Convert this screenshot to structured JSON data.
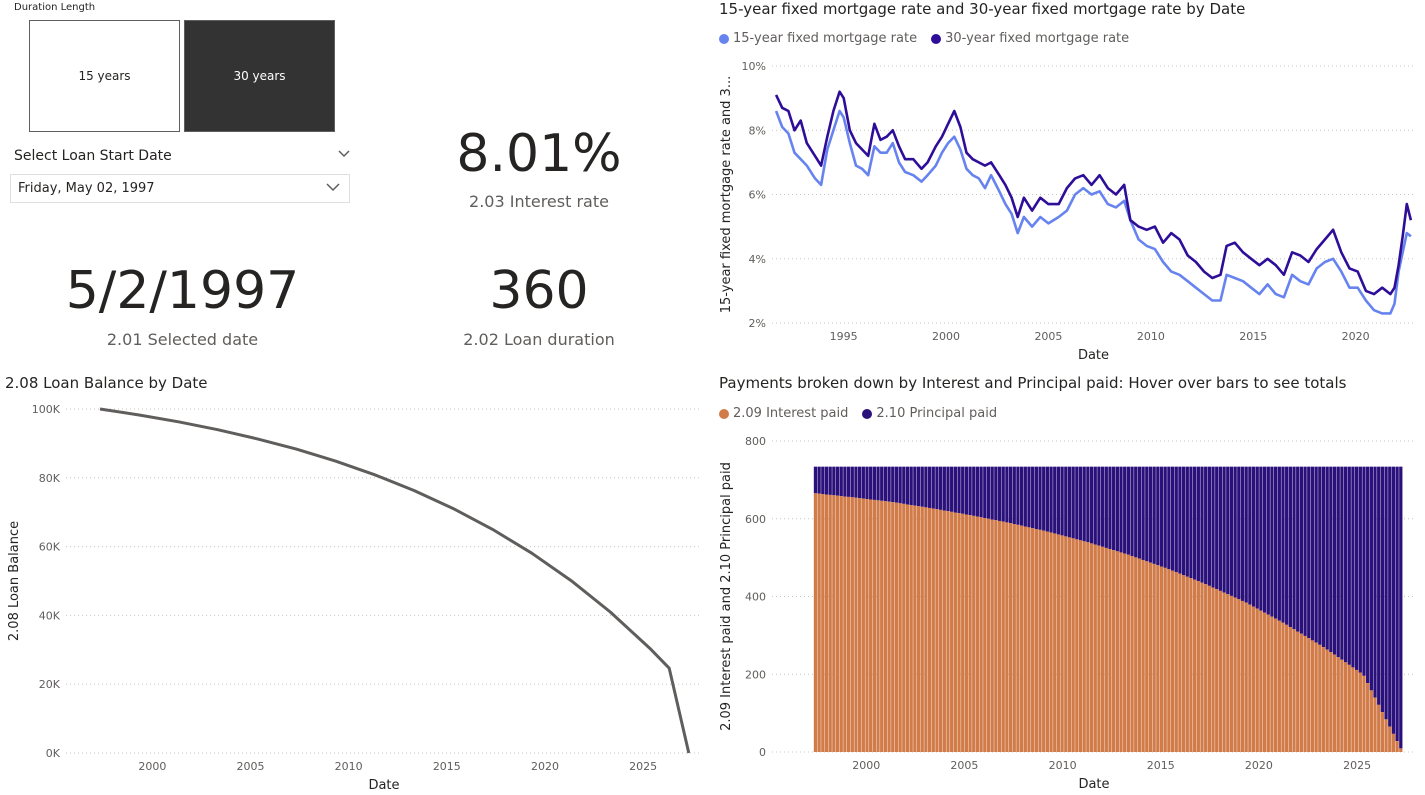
{
  "slicer": {
    "title": "Duration Length",
    "options": [
      "15 years",
      "30 years"
    ],
    "selected": "30 years"
  },
  "date_slicer": {
    "title": "Select Loan Start Date",
    "value": "Friday, May 02, 1997",
    "icon": "chevron-down-icon"
  },
  "kpis": {
    "interest_rate": {
      "value": "8.01%",
      "label": "2.03 Interest rate"
    },
    "selected_date": {
      "value": "5/2/1997",
      "label": "2.01 Selected date"
    },
    "loan_duration": {
      "value": "360",
      "label": "2.02 Loan duration"
    }
  },
  "colors": {
    "rate15": "#6783ef",
    "rate30": "#2e0e99",
    "balance": "#605e5c",
    "interest": "#d17b49",
    "principal": "#2a107a",
    "grid": "#c8c6c4"
  },
  "chart_data": [
    {
      "type": "line",
      "title": "15-year fixed mortgage rate and 30-year fixed mortgage rate by Date",
      "xlabel": "Date",
      "ylabel": "15-year fixed mortgage rate and 3...",
      "xlim": [
        1991.5,
        2022.9
      ],
      "ylim": [
        2,
        10
      ],
      "yticks": [
        "2%",
        "4%",
        "6%",
        "8%",
        "10%"
      ],
      "ytick_values": [
        2,
        4,
        6,
        8,
        10
      ],
      "xticks": [
        "1995",
        "2000",
        "2005",
        "2010",
        "2015",
        "2020"
      ],
      "xtick_values": [
        1995,
        2000,
        2005,
        2010,
        2015,
        2020
      ],
      "legend_position": "top-left",
      "series": [
        {
          "name": "15-year fixed mortgage rate",
          "x": [
            1991.7,
            1992.0,
            1992.3,
            1992.6,
            1992.9,
            1993.2,
            1993.6,
            1993.9,
            1994.2,
            1994.5,
            1994.8,
            1995.0,
            1995.3,
            1995.6,
            1995.9,
            1996.2,
            1996.5,
            1996.8,
            1997.1,
            1997.4,
            1997.7,
            1998.0,
            1998.4,
            1998.8,
            1999.1,
            1999.5,
            1999.8,
            2000.1,
            2000.4,
            2000.7,
            2001.0,
            2001.3,
            2001.6,
            2001.9,
            2002.2,
            2002.6,
            2002.9,
            2003.2,
            2003.5,
            2003.8,
            2004.2,
            2004.6,
            2005.0,
            2005.5,
            2005.9,
            2006.3,
            2006.7,
            2007.1,
            2007.5,
            2007.9,
            2008.3,
            2008.7,
            2009.0,
            2009.4,
            2009.8,
            2010.2,
            2010.6,
            2011.0,
            2011.4,
            2011.8,
            2012.2,
            2012.6,
            2013.0,
            2013.4,
            2013.7,
            2014.1,
            2014.5,
            2014.9,
            2015.3,
            2015.7,
            2016.1,
            2016.5,
            2016.9,
            2017.3,
            2017.7,
            2018.1,
            2018.5,
            2018.9,
            2019.3,
            2019.7,
            2020.1,
            2020.5,
            2020.9,
            2021.3,
            2021.7,
            2021.9,
            2022.1,
            2022.3,
            2022.5,
            2022.7
          ],
          "y": [
            8.6,
            8.1,
            7.9,
            7.3,
            7.1,
            6.9,
            6.5,
            6.3,
            7.4,
            8.0,
            8.6,
            8.4,
            7.6,
            6.9,
            6.8,
            6.6,
            7.5,
            7.3,
            7.3,
            7.6,
            7.0,
            6.7,
            6.6,
            6.4,
            6.6,
            6.9,
            7.3,
            7.6,
            7.8,
            7.4,
            6.8,
            6.6,
            6.5,
            6.2,
            6.6,
            6.1,
            5.7,
            5.4,
            4.8,
            5.3,
            5.0,
            5.3,
            5.1,
            5.3,
            5.5,
            6.0,
            6.2,
            6.0,
            6.1,
            5.7,
            5.6,
            5.8,
            5.2,
            4.6,
            4.4,
            4.3,
            3.9,
            3.6,
            3.5,
            3.3,
            3.1,
            2.9,
            2.7,
            2.7,
            3.5,
            3.4,
            3.3,
            3.1,
            2.9,
            3.2,
            2.9,
            2.8,
            3.5,
            3.3,
            3.2,
            3.7,
            3.9,
            4.0,
            3.6,
            3.1,
            3.1,
            2.7,
            2.4,
            2.3,
            2.3,
            2.6,
            3.6,
            4.2,
            4.8,
            4.7
          ]
        },
        {
          "name": "30-year fixed mortgage rate",
          "x": [
            1991.7,
            1992.0,
            1992.3,
            1992.6,
            1992.9,
            1993.2,
            1993.6,
            1993.9,
            1994.2,
            1994.5,
            1994.8,
            1995.0,
            1995.3,
            1995.6,
            1995.9,
            1996.2,
            1996.5,
            1996.8,
            1997.1,
            1997.4,
            1997.7,
            1998.0,
            1998.4,
            1998.8,
            1999.1,
            1999.5,
            1999.8,
            2000.1,
            2000.4,
            2000.7,
            2001.0,
            2001.3,
            2001.6,
            2001.9,
            2002.2,
            2002.6,
            2002.9,
            2003.2,
            2003.5,
            2003.8,
            2004.2,
            2004.6,
            2005.0,
            2005.5,
            2005.9,
            2006.3,
            2006.7,
            2007.1,
            2007.5,
            2007.9,
            2008.3,
            2008.7,
            2009.0,
            2009.4,
            2009.8,
            2010.2,
            2010.6,
            2011.0,
            2011.4,
            2011.8,
            2012.2,
            2012.6,
            2013.0,
            2013.4,
            2013.7,
            2014.1,
            2014.5,
            2014.9,
            2015.3,
            2015.7,
            2016.1,
            2016.5,
            2016.9,
            2017.3,
            2017.7,
            2018.1,
            2018.5,
            2018.9,
            2019.3,
            2019.7,
            2020.1,
            2020.5,
            2020.9,
            2021.3,
            2021.7,
            2021.9,
            2022.1,
            2022.3,
            2022.5,
            2022.7
          ],
          "y": [
            9.1,
            8.7,
            8.6,
            8.0,
            8.3,
            7.6,
            7.2,
            6.9,
            7.8,
            8.6,
            9.2,
            9.0,
            8.0,
            7.6,
            7.4,
            7.2,
            8.2,
            7.7,
            7.8,
            8.0,
            7.5,
            7.1,
            7.1,
            6.8,
            7.0,
            7.5,
            7.8,
            8.2,
            8.6,
            8.1,
            7.3,
            7.1,
            7.0,
            6.9,
            7.0,
            6.6,
            6.3,
            5.9,
            5.3,
            5.9,
            5.5,
            5.9,
            5.7,
            5.7,
            6.2,
            6.5,
            6.6,
            6.3,
            6.6,
            6.2,
            6.0,
            6.3,
            5.2,
            5.0,
            4.9,
            5.0,
            4.5,
            4.8,
            4.6,
            4.1,
            3.9,
            3.6,
            3.4,
            3.5,
            4.4,
            4.5,
            4.2,
            4.0,
            3.8,
            4.0,
            3.8,
            3.5,
            4.2,
            4.1,
            3.9,
            4.3,
            4.6,
            4.9,
            4.2,
            3.7,
            3.6,
            3.0,
            2.9,
            3.1,
            2.9,
            3.1,
            3.8,
            4.7,
            5.7,
            5.2
          ]
        }
      ]
    },
    {
      "type": "line",
      "title": "2.08 Loan Balance by Date",
      "xlabel": "Date",
      "ylabel": "2.08 Loan Balance",
      "xlim": [
        1995.6,
        2028.0
      ],
      "ylim": [
        0,
        100000
      ],
      "yticks": [
        "0K",
        "20K",
        "40K",
        "60K",
        "80K",
        "100K"
      ],
      "ytick_values": [
        0,
        20000,
        40000,
        60000,
        80000,
        100000
      ],
      "xticks": [
        "2000",
        "2005",
        "2010",
        "2015",
        "2020",
        "2025"
      ],
      "xtick_values": [
        2000,
        2005,
        2010,
        2015,
        2020,
        2025
      ],
      "series": [
        {
          "name": "2.08 Loan Balance",
          "x": [
            1997.33,
            1999.33,
            2001.33,
            2003.33,
            2005.33,
            2007.33,
            2009.33,
            2011.33,
            2013.33,
            2015.33,
            2017.33,
            2019.33,
            2021.33,
            2023.33,
            2025.33,
            2026.33,
            2027.33
          ],
          "y": [
            100000,
            98264,
            96270,
            93980,
            91350,
            88330,
            84860,
            80880,
            76300,
            71050,
            65010,
            58080,
            50120,
            40980,
            30480,
            24660,
            0
          ]
        }
      ]
    },
    {
      "type": "bar",
      "stacked": true,
      "title": "Payments broken down by Interest and Principal paid: Hover over bars to see totals",
      "xlabel": "Date",
      "ylabel": "2.09 Interest paid and 2.10 Principal paid",
      "xlim": [
        1995.2,
        2028.0
      ],
      "ylim": [
        0,
        800
      ],
      "yticks": [
        "0",
        "200",
        "400",
        "600",
        "800"
      ],
      "ytick_values": [
        0,
        200,
        400,
        600,
        800
      ],
      "xticks": [
        "2000",
        "2005",
        "2010",
        "2015",
        "2020",
        "2025"
      ],
      "xtick_values": [
        2000,
        2005,
        2010,
        2015,
        2020,
        2025
      ],
      "period_start": 1997.33,
      "period_end": 2027.33,
      "total_payment": 734,
      "legend_position": "top-left",
      "series": [
        {
          "name": "2.09 Interest paid",
          "x": [
            1997.33,
            1999.33,
            2001.33,
            2003.33,
            2005.33,
            2007.33,
            2009.33,
            2011.33,
            2013.33,
            2015.33,
            2017.33,
            2019.33,
            2021.33,
            2023.33,
            2025.33,
            2027.33
          ],
          "values": [
            666,
            655,
            643,
            627,
            609,
            589,
            566,
            539,
            508,
            472,
            431,
            385,
            330,
            269,
            199,
            0
          ]
        },
        {
          "name": "2.10 Principal paid",
          "x": [
            1997.33,
            1999.33,
            2001.33,
            2003.33,
            2005.33,
            2007.33,
            2009.33,
            2011.33,
            2013.33,
            2015.33,
            2017.33,
            2019.33,
            2021.33,
            2023.33,
            2025.33,
            2027.33
          ],
          "values": [
            68,
            79,
            91,
            107,
            125,
            145,
            168,
            195,
            226,
            262,
            303,
            349,
            404,
            465,
            535,
            734
          ]
        }
      ]
    }
  ]
}
